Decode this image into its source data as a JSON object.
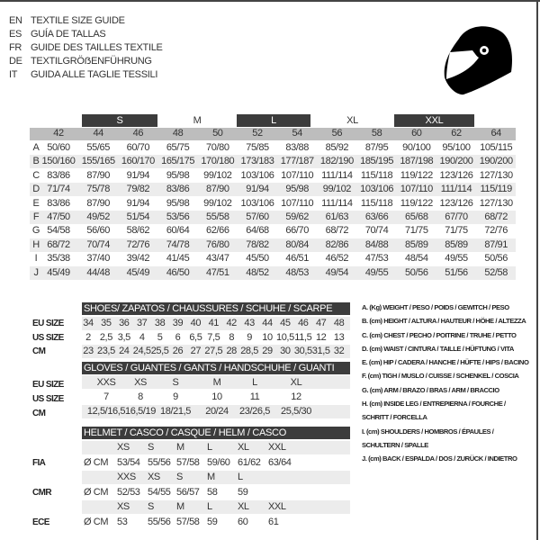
{
  "languages": [
    {
      "code": "EN",
      "title": "TEXTILE SIZE GUIDE"
    },
    {
      "code": "ES",
      "title": "GUÍA DE TALLAS"
    },
    {
      "code": "FR",
      "title": "GUIDE DES TAILLES TEXTILE"
    },
    {
      "code": "DE",
      "title": "TEXTILGRÖẞENFÜHRUNG"
    },
    {
      "code": "IT",
      "title": "GUIDA ALLE TAGLIE TESSILI"
    }
  ],
  "icon": "helmet-icon",
  "textile": {
    "groups": [
      "S",
      "M",
      "L",
      "XL",
      "XXL"
    ],
    "sizes": [
      "42",
      "44",
      "46",
      "48",
      "50",
      "52",
      "54",
      "56",
      "58",
      "60",
      "62",
      "64"
    ],
    "rows": [
      {
        "letter": "A",
        "values": [
          "50/60",
          "55/65",
          "60/70",
          "65/75",
          "70/80",
          "75/85",
          "83/88",
          "85/92",
          "87/95",
          "90/100",
          "95/100",
          "105/115"
        ]
      },
      {
        "letter": "B",
        "values": [
          "150/160",
          "155/165",
          "160/170",
          "165/175",
          "170/180",
          "173/183",
          "177/187",
          "182/190",
          "185/195",
          "187/198",
          "190/200",
          "190/200"
        ]
      },
      {
        "letter": "C",
        "values": [
          "83/86",
          "87/90",
          "91/94",
          "95/98",
          "99/102",
          "103/106",
          "107/110",
          "111/114",
          "115/118",
          "119/122",
          "123/126",
          "127/130"
        ]
      },
      {
        "letter": "D",
        "values": [
          "71/74",
          "75/78",
          "79/82",
          "83/86",
          "87/90",
          "91/94",
          "95/98",
          "99/102",
          "103/106",
          "107/110",
          "111/114",
          "115/119"
        ]
      },
      {
        "letter": "E",
        "values": [
          "83/86",
          "87/90",
          "91/94",
          "95/98",
          "99/102",
          "103/106",
          "107/110",
          "111/114",
          "115/118",
          "119/122",
          "123/126",
          "127/130"
        ]
      },
      {
        "letter": "F",
        "values": [
          "47/50",
          "49/52",
          "51/54",
          "53/56",
          "55/58",
          "57/60",
          "59/62",
          "61/63",
          "63/66",
          "65/68",
          "67/70",
          "68/72"
        ]
      },
      {
        "letter": "G",
        "values": [
          "54/58",
          "56/60",
          "58/62",
          "60/64",
          "62/66",
          "64/68",
          "66/70",
          "68/72",
          "70/74",
          "71/75",
          "71/75",
          "72/76"
        ]
      },
      {
        "letter": "H",
        "values": [
          "68/72",
          "70/74",
          "72/76",
          "74/78",
          "76/80",
          "78/82",
          "80/84",
          "82/86",
          "84/88",
          "85/89",
          "85/89",
          "87/91"
        ]
      },
      {
        "letter": "I",
        "values": [
          "35/38",
          "37/40",
          "39/42",
          "41/45",
          "43/47",
          "45/50",
          "46/51",
          "46/52",
          "47/53",
          "48/54",
          "49/55",
          "50/56"
        ]
      },
      {
        "letter": "J",
        "values": [
          "45/49",
          "44/48",
          "45/49",
          "46/50",
          "47/51",
          "48/52",
          "48/53",
          "49/54",
          "49/55",
          "50/56",
          "51/56",
          "52/58"
        ]
      }
    ]
  },
  "shoes": {
    "title": "SHOES/ ZAPATOS / CHAUSSURES / SCHUHE / SCARPE",
    "rows": [
      {
        "label": "EU SIZE",
        "values": [
          "34",
          "35",
          "36",
          "37",
          "38",
          "39",
          "40",
          "41",
          "42",
          "43",
          "44",
          "45",
          "46",
          "47",
          "48"
        ]
      },
      {
        "label": "US SIZE",
        "values": [
          "2",
          "2,5",
          "3,5",
          "4",
          "5",
          "6",
          "6,5",
          "7,5",
          "8",
          "9",
          "10",
          "10,5",
          "11,5",
          "12",
          "13"
        ]
      },
      {
        "label": "CM",
        "values": [
          "23",
          "23,5",
          "24",
          "24,5",
          "25,5",
          "26",
          "27",
          "27,5",
          "28",
          "28,5",
          "29",
          "30",
          "30,5",
          "31,5",
          "32"
        ]
      }
    ]
  },
  "gloves": {
    "title": "GLOVES / GUANTES / GANTS / HANDSCHUHE / GUANTI",
    "rows": [
      {
        "label": "EU SIZE",
        "values": [
          "XXS",
          "XS",
          "S",
          "M",
          "L",
          "XL"
        ]
      },
      {
        "label": "US SIZE",
        "values": [
          "7",
          "8",
          "9",
          "10",
          "11",
          "12"
        ]
      },
      {
        "label": "CM",
        "values": [
          "12,5/16,5",
          "16,5/19",
          "18/21,5",
          "20/24",
          "23/26,5",
          "25,5/30"
        ]
      }
    ]
  },
  "helmet": {
    "title": "HELMET / CASCO / CASQUE / HELM / CASCO",
    "unit": "Ø CM",
    "standards": [
      {
        "label": "FIA",
        "sizes": [
          "XS",
          "S",
          "M",
          "L",
          "XL",
          "XXL"
        ],
        "values": [
          "53/54",
          "55/56",
          "57/58",
          "59/60",
          "61/62",
          "63/64"
        ]
      },
      {
        "label": "CMR",
        "sizes": [
          "XXS",
          "XS",
          "S",
          "M",
          "L"
        ],
        "values": [
          "52/53",
          "54/55",
          "56/57",
          "58",
          "59"
        ]
      },
      {
        "label": "ECE",
        "sizes": [
          "XS",
          "S",
          "M",
          "L",
          "XL",
          "XXL"
        ],
        "values": [
          "53",
          "55/56",
          "57/58",
          "59",
          "60",
          "61"
        ]
      }
    ]
  },
  "legend": [
    "A. (Kg) WEIGHT / PESO / POIDS / GEWITCH / PESO",
    "B. (cm) HEIGHT / ALTURA / HAUTEUR / HÖHE / ALTEZZA",
    "C. (cm) CHEST / PECHO / POITRINE / TRUHE / PETTO",
    "D. (cm) WAIST / CINTURA / TAILLE / HÜFTUNG / VITA",
    "E. (cm) HIP / CADERA / HANCHE / HÜFTE / HIPS /  BACINO",
    "F.  (cm) TIGH / MUSLO / CUISSE / SCHENKEL / COSCIA",
    "G. (cm) ARM  / BRAZO / BRAS / ARM / BRACCIO",
    "H. (cm) INSIDE LEG / ENTREPIERNA / FOURCHE /",
    "SCHRITT / FORCELLA",
    "I.  (cm) SHOULDERS / HOMBROS / ÉPAULES /",
    "SCHULTERN / SPALLE",
    "J. (cm) BACK / ESPALDA / DOS / ZURÜCK / INDIETRO"
  ]
}
